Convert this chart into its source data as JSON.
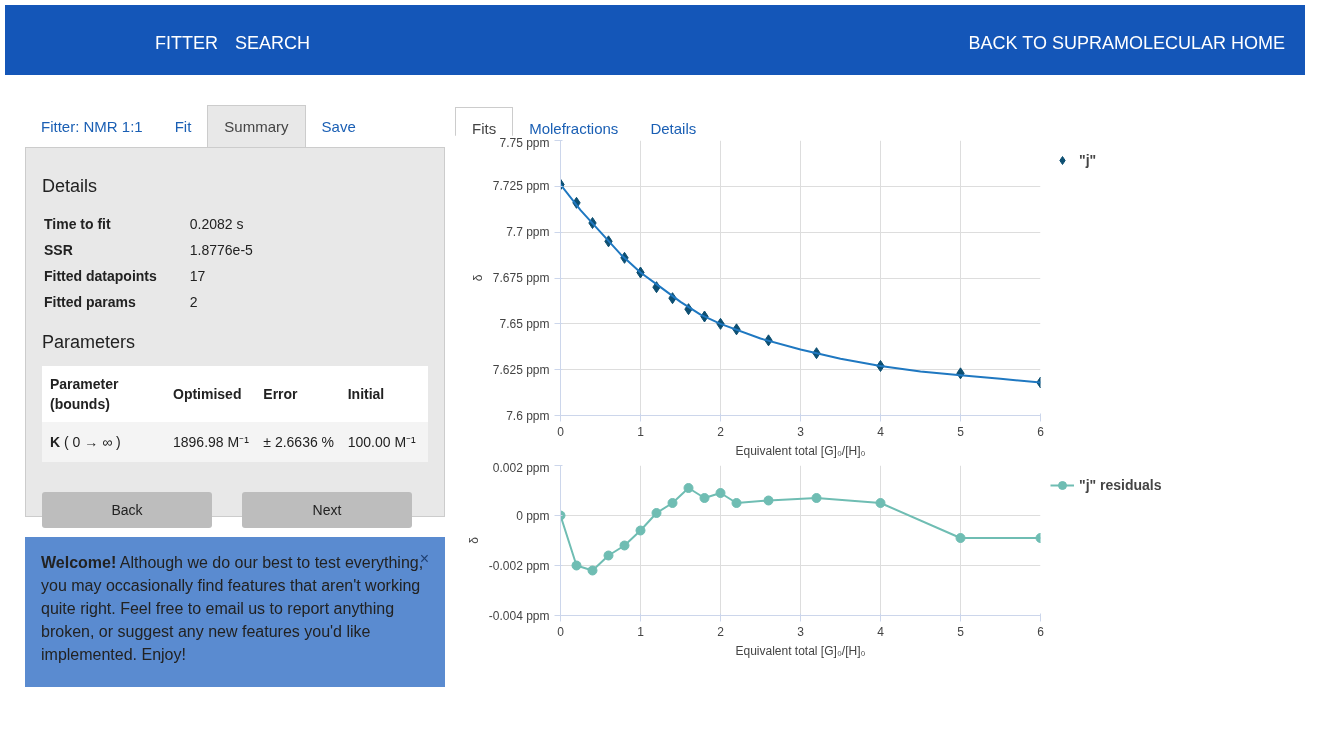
{
  "chart_data": [
    {
      "type": "other",
      "annotations": [
        "FITTER",
        "SEARCH",
        "BACK TO SUPRAMOLECULAR HOME",
        "Fitter: NMR 1:1",
        "Fit",
        "Summary",
        "Save",
        "Details",
        "Time to fit",
        "0.2082 s",
        "SSR",
        "1.8776e-5",
        "Fitted datapoints",
        "17",
        "Fitted params",
        "2",
        "Parameters",
        "Parameter (bounds)",
        "Optimised",
        "Error",
        "Initial",
        "K",
        "( 0 → ∞ )",
        "1896.98 M⁻¹",
        "± 2.6636 %",
        "100.00 M⁻¹",
        "Back",
        "Next",
        "Welcome!",
        "Although we do our best to test everything, you may occasionally find features that aren't working quite right. Feel free to email us to report anything broken, or suggest any new features you'd like implemented. Enjoy!",
        "×",
        "Fits",
        "Molefractions",
        "Details"
      ]
    },
    {
      "type": "scatter",
      "xlabel": "Equivalent total [G]₀/[H]₀",
      "ylabel": "δ",
      "marker": "diamond",
      "grid": true,
      "legend": "top right",
      "xlim": [
        0,
        6
      ],
      "xticks": [
        0,
        1,
        2,
        3,
        4,
        5,
        6
      ],
      "ylim": [
        7.6,
        7.75
      ],
      "yticks": [
        {
          "value": 7.6,
          "label": "7.6 ppm"
        },
        {
          "value": 7.625,
          "label": "7.625 ppm"
        },
        {
          "value": 7.65,
          "label": "7.65 ppm"
        },
        {
          "value": 7.675,
          "label": "7.675 ppm"
        },
        {
          "value": 7.7,
          "label": "7.7 ppm"
        },
        {
          "value": 7.725,
          "label": "7.725 ppm"
        },
        {
          "value": 7.75,
          "label": "7.75 ppm"
        }
      ],
      "x": [
        0,
        0.2,
        0.4,
        0.6,
        0.8,
        1.0,
        1.2,
        1.4,
        1.6,
        1.8,
        2.0,
        2.2,
        2.6,
        3.2,
        4,
        5,
        6
      ],
      "series": [
        {
          "name": "\"j\"",
          "color": "#0d4f72",
          "values": [
            7.726,
            7.716,
            7.705,
            7.695,
            7.686,
            7.678,
            7.67,
            7.664,
            7.658,
            7.654,
            7.65,
            7.647,
            7.641,
            7.634,
            7.627,
            7.623,
            7.618
          ]
        },
        {
          "type": "line",
          "marker": "none",
          "color": "#1f78c1",
          "x": [
            0,
            0.25,
            0.5,
            0.75,
            1.0,
            1.25,
            1.5,
            1.75,
            2.0,
            2.5,
            3.0,
            3.5,
            4,
            4.5,
            5,
            5.5,
            6
          ],
          "values": [
            7.726,
            7.712,
            7.7,
            7.688,
            7.678,
            7.67,
            7.662,
            7.655,
            7.65,
            7.642,
            7.636,
            7.631,
            7.627,
            7.624,
            7.622,
            7.62,
            7.618
          ]
        }
      ]
    },
    {
      "type": "line",
      "xlabel": "Equivalent total [G]₀/[H]₀",
      "ylabel": "δ",
      "marker": "circle",
      "grid": true,
      "legend": "top right",
      "xlim": [
        0,
        6
      ],
      "xticks": [
        0,
        1,
        2,
        3,
        4,
        5,
        6
      ],
      "ylim": [
        -0.004,
        0.002
      ],
      "yticks": [
        {
          "value": -0.004,
          "label": "-0.004 ppm"
        },
        {
          "value": -0.002,
          "label": "-0.002 ppm"
        },
        {
          "value": 0,
          "label": "0 ppm"
        },
        {
          "value": 0.002,
          "label": "0.002 ppm"
        }
      ],
      "x": [
        0,
        0.2,
        0.4,
        0.6,
        0.8,
        1.0,
        1.2,
        1.4,
        1.6,
        1.8,
        2.0,
        2.2,
        2.6,
        3.2,
        4,
        5,
        6
      ],
      "series": [
        {
          "name": "\"j\" residuals",
          "color": "#6fbdb3",
          "values": [
            0.0,
            -0.002,
            -0.0022,
            -0.0016,
            -0.0012,
            -0.0006,
            0.0001,
            0.0005,
            0.0011,
            0.0007,
            0.0009,
            0.0005,
            0.0006,
            0.0007,
            0.0005,
            -0.0009,
            -0.0009
          ]
        }
      ]
    }
  ]
}
